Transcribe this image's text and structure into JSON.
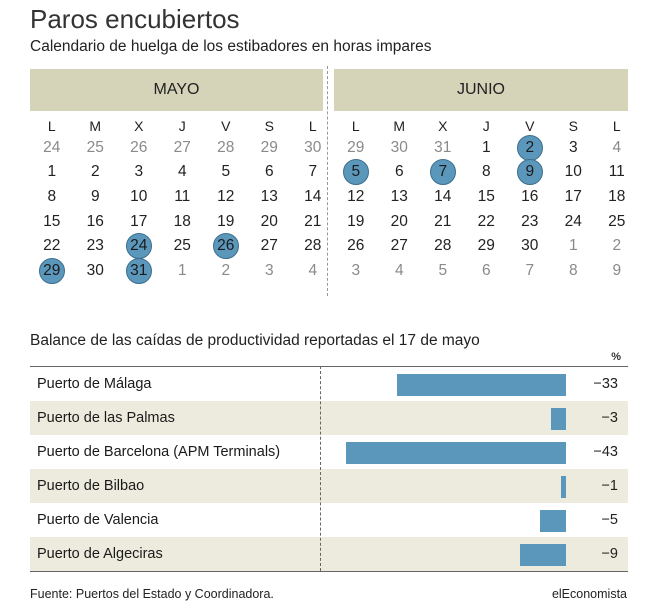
{
  "title": "Paros encubiertos",
  "subtitle": "Calendario de huelga de los estibadores en horas impares",
  "calendar": {
    "weekdays": [
      "L",
      "M",
      "X",
      "J",
      "V",
      "S",
      "L"
    ],
    "months": [
      {
        "name": "MAYO",
        "weeks": [
          [
            {
              "d": "24",
              "m": true
            },
            {
              "d": "25",
              "m": true
            },
            {
              "d": "26",
              "m": true
            },
            {
              "d": "27",
              "m": true
            },
            {
              "d": "28",
              "m": true
            },
            {
              "d": "29",
              "m": true
            },
            {
              "d": "30",
              "m": true
            }
          ],
          [
            {
              "d": "1"
            },
            {
              "d": "2"
            },
            {
              "d": "3"
            },
            {
              "d": "4"
            },
            {
              "d": "5"
            },
            {
              "d": "6"
            },
            {
              "d": "7"
            }
          ],
          [
            {
              "d": "8"
            },
            {
              "d": "9"
            },
            {
              "d": "10"
            },
            {
              "d": "11"
            },
            {
              "d": "12"
            },
            {
              "d": "13"
            },
            {
              "d": "14"
            }
          ],
          [
            {
              "d": "15"
            },
            {
              "d": "16"
            },
            {
              "d": "17"
            },
            {
              "d": "18"
            },
            {
              "d": "19"
            },
            {
              "d": "20"
            },
            {
              "d": "21"
            }
          ],
          [
            {
              "d": "22"
            },
            {
              "d": "23"
            },
            {
              "d": "24",
              "h": true
            },
            {
              "d": "25"
            },
            {
              "d": "26",
              "h": true
            },
            {
              "d": "27"
            },
            {
              "d": "28"
            }
          ],
          [
            {
              "d": "29",
              "h": true
            },
            {
              "d": "30"
            },
            {
              "d": "31",
              "h": true
            },
            {
              "d": "1",
              "m": true
            },
            {
              "d": "2",
              "m": true
            },
            {
              "d": "3",
              "m": true
            },
            {
              "d": "4",
              "m": true
            }
          ]
        ]
      },
      {
        "name": "JUNIO",
        "weeks": [
          [
            {
              "d": "29",
              "m": true
            },
            {
              "d": "30",
              "m": true
            },
            {
              "d": "31",
              "m": true
            },
            {
              "d": "1"
            },
            {
              "d": "2",
              "h": true
            },
            {
              "d": "3"
            },
            {
              "d": "4",
              "m": true
            }
          ],
          [
            {
              "d": "5",
              "h": true
            },
            {
              "d": "6"
            },
            {
              "d": "7",
              "h": true
            },
            {
              "d": "8"
            },
            {
              "d": "9",
              "h": true
            },
            {
              "d": "10"
            },
            {
              "d": "11"
            }
          ],
          [
            {
              "d": "12"
            },
            {
              "d": "13"
            },
            {
              "d": "14"
            },
            {
              "d": "15"
            },
            {
              "d": "16"
            },
            {
              "d": "17"
            },
            {
              "d": "18"
            }
          ],
          [
            {
              "d": "19"
            },
            {
              "d": "20"
            },
            {
              "d": "21"
            },
            {
              "d": "22"
            },
            {
              "d": "23"
            },
            {
              "d": "24"
            },
            {
              "d": "25"
            }
          ],
          [
            {
              "d": "26"
            },
            {
              "d": "27"
            },
            {
              "d": "28"
            },
            {
              "d": "29"
            },
            {
              "d": "30"
            },
            {
              "d": "1",
              "m": true
            },
            {
              "d": "2",
              "m": true
            }
          ],
          [
            {
              "d": "3",
              "m": true
            },
            {
              "d": "4",
              "m": true
            },
            {
              "d": "5",
              "m": true
            },
            {
              "d": "6",
              "m": true
            },
            {
              "d": "7",
              "m": true
            },
            {
              "d": "8",
              "m": true
            },
            {
              "d": "9",
              "m": true
            }
          ]
        ]
      }
    ]
  },
  "chart_data": {
    "type": "bar",
    "title": "Balance de las caídas de productividad reportadas el 17 de mayo",
    "unit": "%",
    "categories": [
      "Puerto de Málaga",
      "Puerto de las Palmas",
      "Puerto de Barcelona (APM Terminals)",
      "Puerto de Bilbao",
      "Puerto de Valencia",
      "Puerto de Algeciras"
    ],
    "values": [
      -33,
      -3,
      -43,
      -1,
      -5,
      -9
    ],
    "value_labels": [
      "−33",
      "−3",
      "−43",
      "−1",
      "−5",
      "−9"
    ],
    "xlim": [
      -43,
      0
    ],
    "orientation": "horizontal",
    "bar_color": "#5b97bb",
    "row_shade_color": "#ecebdd"
  },
  "source": "Fuente: Puertos del Estado y Coordinadora.",
  "brand": "elEconomista"
}
